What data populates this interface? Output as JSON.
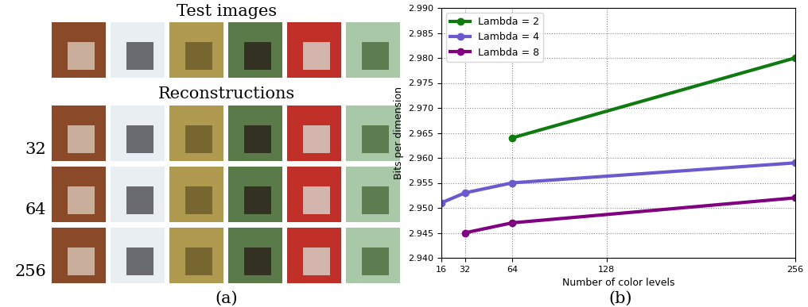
{
  "panel_a": {
    "title": "Test images",
    "subtitle": "Reconstructions",
    "rows": [
      "32",
      "64",
      "256"
    ],
    "caption": "(a)"
  },
  "chart_data": {
    "type": "line",
    "caption": "(b)",
    "x_label": "Number of color levels",
    "y_label": "Bits per dimension",
    "xlim": [
      16,
      256
    ],
    "xticks": [
      16,
      32,
      64,
      128,
      256
    ],
    "ylim": [
      2.94,
      2.99
    ],
    "yticks": [
      {
        "value": 2.94,
        "label": "2.940"
      },
      {
        "value": 2.945,
        "label": "2.945"
      },
      {
        "value": 2.95,
        "label": "2.950"
      },
      {
        "value": 2.955,
        "label": "2.955"
      },
      {
        "value": 2.96,
        "label": "2.960"
      },
      {
        "value": 2.965,
        "label": "2.965"
      },
      {
        "value": 2.97,
        "label": "2.970"
      },
      {
        "value": 2.975,
        "label": "2.975"
      },
      {
        "value": 2.98,
        "label": "2.980"
      },
      {
        "value": 2.985,
        "label": "2.985"
      },
      {
        "value": 2.99,
        "label": "2.990"
      }
    ],
    "grid": true,
    "legend": "upper left",
    "marker": "o",
    "series": [
      {
        "name": "Lambda = 2",
        "color": "#0f7a0f",
        "x": [
          64,
          256
        ],
        "values": [
          2.964,
          2.98
        ]
      },
      {
        "name": "Lambda = 4",
        "color": "#6a5acd",
        "x": [
          16,
          32,
          64,
          256
        ],
        "values": [
          2.951,
          2.953,
          2.955,
          2.959
        ]
      },
      {
        "name": "Lambda = 8",
        "color": "#800080",
        "x": [
          32,
          64,
          256
        ],
        "values": [
          2.945,
          2.947,
          2.952
        ]
      }
    ]
  }
}
